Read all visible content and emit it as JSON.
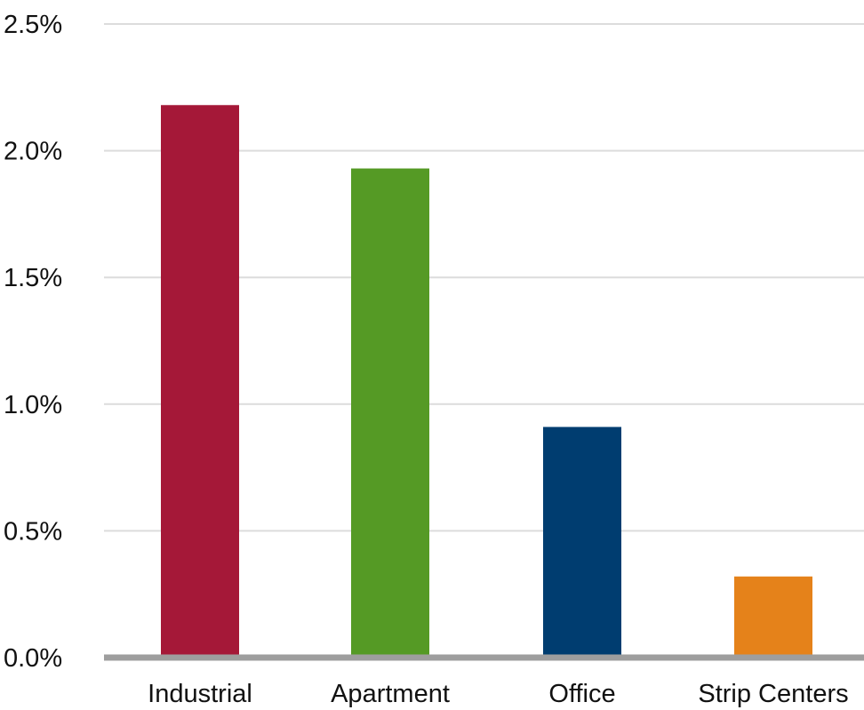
{
  "chart_data": {
    "type": "bar",
    "categories": [
      "Industrial",
      "Apartment",
      "Office",
      "Strip Centers"
    ],
    "values": [
      2.18,
      1.93,
      0.91,
      0.32
    ],
    "colors": [
      "#A51838",
      "#559A25",
      "#003D70",
      "#E5821A"
    ],
    "y_ticks": [
      "0.0%",
      "0.5%",
      "1.0%",
      "1.5%",
      "2.0%",
      "2.5%"
    ],
    "y_tick_values": [
      0,
      0.5,
      1.0,
      1.5,
      2.0,
      2.5
    ],
    "ylim": [
      0,
      2.5
    ],
    "grid": true,
    "grid_color": "#DCDCDC",
    "baseline_color": "#9E9E9E"
  }
}
